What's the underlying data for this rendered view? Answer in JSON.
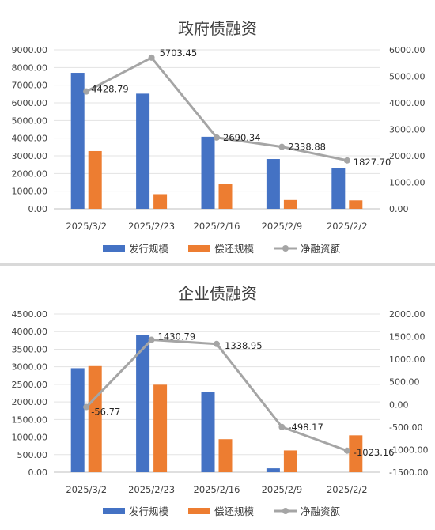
{
  "chart_data": [
    {
      "type": "bar",
      "title": "政府债融资",
      "categories": [
        "2025/3/2",
        "2025/2/23",
        "2025/2/16",
        "2025/2/9",
        "2025/2/2"
      ],
      "series": [
        {
          "name": "发行规模",
          "kind": "bar",
          "axis": "left",
          "values": [
            7700,
            6520,
            4080,
            2820,
            2300
          ]
        },
        {
          "name": "偿还规模",
          "kind": "bar",
          "axis": "left",
          "values": [
            3270,
            830,
            1400,
            500,
            480
          ]
        },
        {
          "name": "净融资额",
          "kind": "line",
          "axis": "right",
          "values": [
            4428.79,
            5703.45,
            2690.34,
            2338.88,
            1827.7
          ]
        }
      ],
      "data_labels": [
        "4428.79",
        "5703.45",
        "2690.34",
        "2338.88",
        "1827.70"
      ],
      "y_left": {
        "min": 0,
        "max": 9000,
        "ticks": [
          "0.00",
          "1000.00",
          "2000.00",
          "3000.00",
          "4000.00",
          "5000.00",
          "6000.00",
          "7000.00",
          "8000.00",
          "9000.00"
        ]
      },
      "y_right": {
        "min": 0,
        "max": 6000,
        "ticks": [
          "0.00",
          "1000.00",
          "2000.00",
          "3000.00",
          "4000.00",
          "5000.00",
          "6000.00"
        ]
      },
      "grid": true,
      "legend_position": "bottom",
      "colors": {
        "issue": "#4472c4",
        "repay": "#ed7d31",
        "net": "#a5a5a5"
      }
    },
    {
      "type": "bar",
      "title": "企业债融资",
      "categories": [
        "2025/3/2",
        "2025/2/23",
        "2025/2/16",
        "2025/2/9",
        "2025/2/2"
      ],
      "series": [
        {
          "name": "发行规模",
          "kind": "bar",
          "axis": "left",
          "values": [
            2960,
            3910,
            2280,
            110,
            0
          ]
        },
        {
          "name": "偿还规模",
          "kind": "bar",
          "axis": "left",
          "values": [
            3020,
            2490,
            940,
            620,
            1050
          ]
        },
        {
          "name": "净融资额",
          "kind": "line",
          "axis": "right",
          "values": [
            -56.77,
            1430.79,
            1338.95,
            -498.17,
            -1023.16
          ]
        }
      ],
      "data_labels": [
        "-56.77",
        "1430.79",
        "1338.95",
        "-498.17",
        "-1023.16"
      ],
      "y_left": {
        "min": 0,
        "max": 4500,
        "ticks": [
          "0.00",
          "500.00",
          "1000.00",
          "1500.00",
          "2000.00",
          "2500.00",
          "3000.00",
          "3500.00",
          "4000.00",
          "4500.00"
        ]
      },
      "y_right": {
        "min": -1500,
        "max": 2000,
        "ticks": [
          "-1500.00",
          "-1000.00",
          "-500.00",
          "0.00",
          "500.00",
          "1000.00",
          "1500.00",
          "2000.00"
        ]
      },
      "grid": true,
      "legend_position": "bottom",
      "colors": {
        "issue": "#4472c4",
        "repay": "#ed7d31",
        "net": "#a5a5a5"
      }
    }
  ]
}
